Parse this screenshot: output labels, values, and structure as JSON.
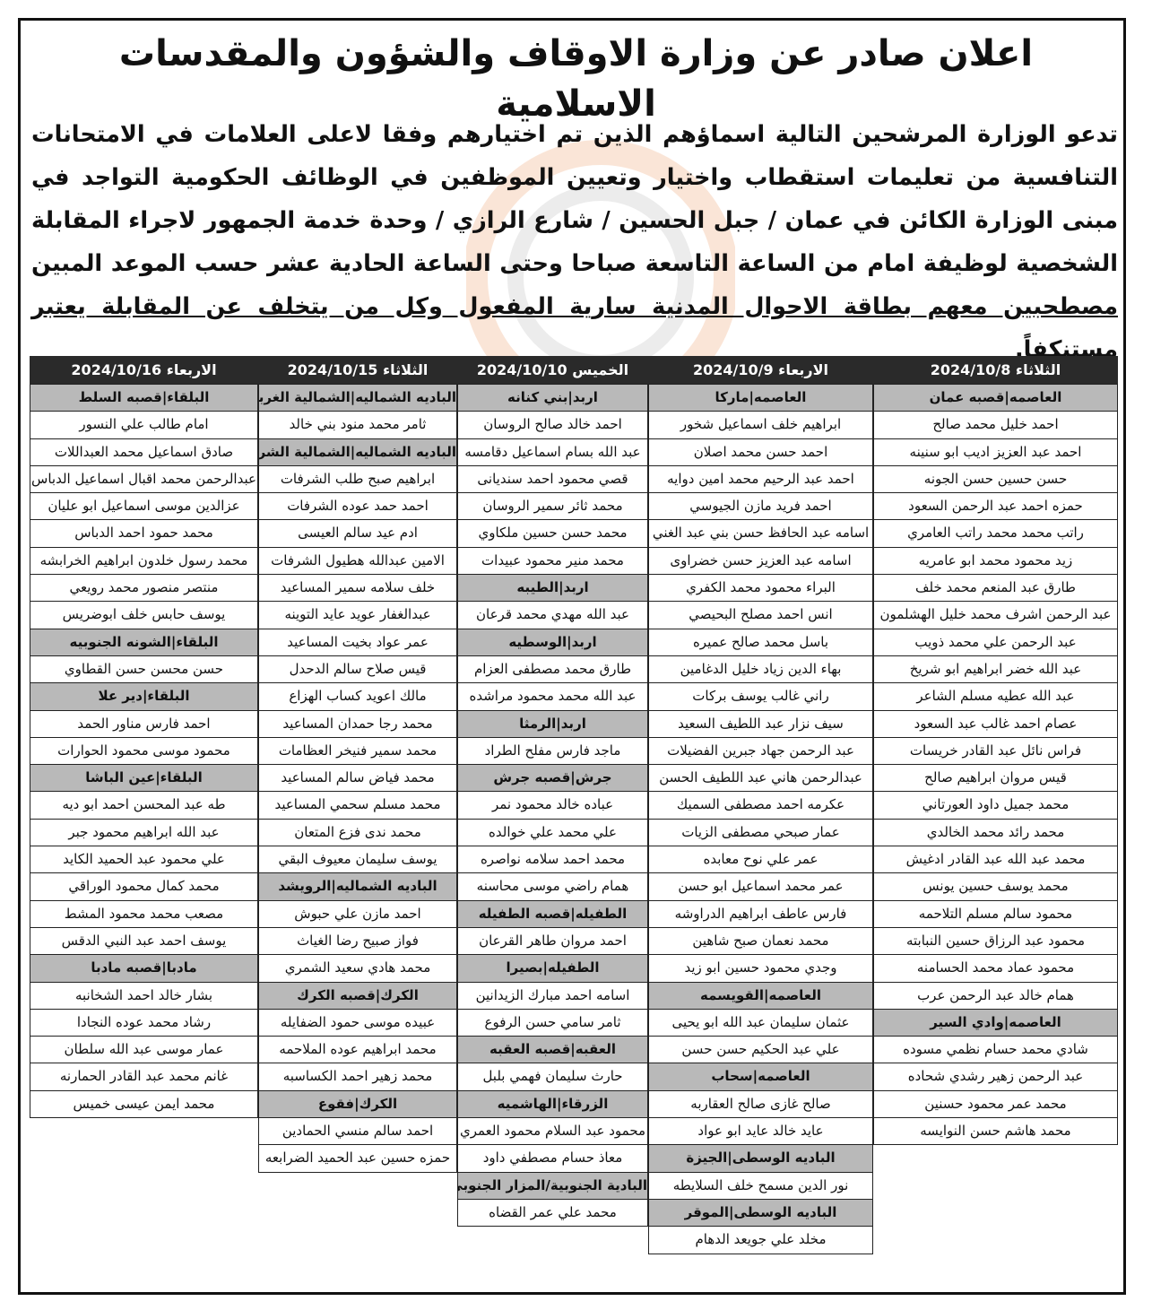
{
  "title": "اعلان صادر عن وزارة الاوقاف والشؤون والمقدسات الاسلامية",
  "paragraph": {
    "main": "تدعو الوزارة المرشحين التالية اسماؤهم الذين تم اختيارهم وفقا لاعلى العلامات في الامتحانات التنافسية من تعليمات استقطاب واختيار وتعيين الموظفين في الوظائف الحكومية التواجد في مبنى الوزارة الكائن في عمان / جبل الحسين / شارع الرازي / وحدة خدمة الجمهور لاجراء المقابلة الشخصية لوظيفة امام من الساعة التاسعة صباحا وحتى الساعة الحادية عشر حسب الموعد المبين",
    "underlined": "مصطحبين معهم بطاقة الاحوال المدنية سارية المفعول وكل من يتخلف عن المقابلة يعتبر مستنكفاً."
  },
  "colors": {
    "header_bg": "#2a2a2a",
    "group_row_bg": "#b9b9b9",
    "watermark": "#e8732a"
  },
  "columns": [
    {
      "header": "الثلاثاء 2024/10/8",
      "rows": [
        {
          "t": "العاصمه|قصبه عمان",
          "g": true
        },
        {
          "t": "احمد خليل محمد صالح"
        },
        {
          "t": "احمد عبد العزيز اديب ابو سنينه"
        },
        {
          "t": "حسن حسين حسن الجونه"
        },
        {
          "t": "حمزه احمد عبد الرحمن السعود"
        },
        {
          "t": "راتب محمد محمد راتب العامري"
        },
        {
          "t": "زيد محمود محمد ابو عامريه"
        },
        {
          "t": "طارق عبد المنعم محمد خلف"
        },
        {
          "t": "عبد الرحمن اشرف محمد خليل الهشلمون"
        },
        {
          "t": "عبد الرحمن علي محمد ذويب"
        },
        {
          "t": "عبد الله خضر ابراهيم ابو شريخ"
        },
        {
          "t": "عبد الله عطيه مسلم الشاعر"
        },
        {
          "t": "عصام احمد غالب عبد السعود"
        },
        {
          "t": "فراس نائل عبد القادر خريسات"
        },
        {
          "t": "قيس مروان ابراهيم صالح"
        },
        {
          "t": "محمد جميل داود العورتاني"
        },
        {
          "t": "محمد رائد محمد الخالدي"
        },
        {
          "t": "محمد عبد الله عبد القادر ادغيش"
        },
        {
          "t": "محمد يوسف حسين يونس"
        },
        {
          "t": "محمود سالم مسلم التلاحمه"
        },
        {
          "t": "محمود عبد الرزاق حسين النبابته"
        },
        {
          "t": "محمود عماد محمد الحسامنه"
        },
        {
          "t": "همام خالد عبد الرحمن عرب"
        },
        {
          "t": "العاصمه|وادي السير",
          "g": true
        },
        {
          "t": "شادي محمد حسام نظمي مسوده"
        },
        {
          "t": "عبد الرحمن زهير رشدي شحاده"
        },
        {
          "t": "محمد عمر محمود حسنين"
        },
        {
          "t": "محمد هاشم حسن النوايسه"
        }
      ]
    },
    {
      "header": "الاربعاء 2024/10/9",
      "rows": [
        {
          "t": "العاصمه|ماركا",
          "g": true
        },
        {
          "t": "ابراهيم خلف اسماعيل شخور"
        },
        {
          "t": "احمد حسن محمد اصلان"
        },
        {
          "t": "احمد عبد الرحيم محمد امين دوايه"
        },
        {
          "t": "احمد فريد مازن الجيوسي"
        },
        {
          "t": "اسامه عبد الحافظ حسن بني عبد الغني"
        },
        {
          "t": "اسامه عبد العزيز حسن خضراوى"
        },
        {
          "t": "البراء محمود محمد الكفري"
        },
        {
          "t": "انس احمد مصلح البحيصي"
        },
        {
          "t": "باسل محمد صالح عميره"
        },
        {
          "t": "بهاء الدين زياد خليل الدغامين"
        },
        {
          "t": "راني غالب يوسف بركات"
        },
        {
          "t": "سيف نزار عبد اللطيف السعيد"
        },
        {
          "t": "عبد الرحمن جهاد جبرين الفضيلات"
        },
        {
          "t": "عبدالرحمن هاني عبد اللطيف الحسن"
        },
        {
          "t": "عكرمه احمد مصطفى السميك"
        },
        {
          "t": "عمار صبحي مصطفى الزيات"
        },
        {
          "t": "عمر علي نوح معابده"
        },
        {
          "t": "عمر محمد اسماعيل ابو حسن"
        },
        {
          "t": "فارس عاطف ابراهيم الدراوشه"
        },
        {
          "t": "محمد نعمان صبح شاهين"
        },
        {
          "t": "وجدي محمود حسين ابو زيد"
        },
        {
          "t": "العاصمه|القويسمه",
          "g": true
        },
        {
          "t": "عثمان سليمان عبد الله ابو يحيى"
        },
        {
          "t": "علي عبد الحكيم حسن حسن"
        },
        {
          "t": "العاصمه|سحاب",
          "g": true
        },
        {
          "t": "صالح غازى صالح العقاربه"
        },
        {
          "t": "عايد خالد عايد ابو عواد"
        },
        {
          "t": "الباديه الوسطى|الجيزة",
          "g": true
        },
        {
          "t": "نور الدين مسمح خلف السلايطه"
        },
        {
          "t": "الباديه الوسطى|الموقر",
          "g": true
        },
        {
          "t": "مخلد علي جويعد الدهام"
        }
      ]
    },
    {
      "header": "الخميس 2024/10/10",
      "rows": [
        {
          "t": "اربد|بني كنانه",
          "g": true
        },
        {
          "t": "احمد خالد صالح الروسان"
        },
        {
          "t": "عبد الله بسام اسماعيل دقامسه"
        },
        {
          "t": "قصي محمود احمد سنديانى"
        },
        {
          "t": "محمد ثائر سمير الروسان"
        },
        {
          "t": "محمد حسن حسين ملكاوي"
        },
        {
          "t": "محمد منير محمود عبيدات"
        },
        {
          "t": "اربد|الطيبه",
          "g": true
        },
        {
          "t": "عبد الله مهدي محمد قرعان"
        },
        {
          "t": "اربد|الوسطيه",
          "g": true
        },
        {
          "t": "طارق محمد مصطفى العزام"
        },
        {
          "t": "عبد الله محمد محمود مراشده"
        },
        {
          "t": "اربد|الرمثا",
          "g": true
        },
        {
          "t": "ماجد فارس مفلح الطراد"
        },
        {
          "t": "جرش|قصبه جرش",
          "g": true
        },
        {
          "t": "عباده خالد محمود نمر"
        },
        {
          "t": "علي محمد علي خوالده"
        },
        {
          "t": "محمد احمد سلامه نواصره"
        },
        {
          "t": "همام راضي موسى محاسنه"
        },
        {
          "t": "الطفيله|قصبه الطفيله",
          "g": true
        },
        {
          "t": "احمد مروان طاهر القرعان"
        },
        {
          "t": "الطفيله|بصيرا",
          "g": true
        },
        {
          "t": "اسامه احمد مبارك الزيدانين"
        },
        {
          "t": "ثامر سامي حسن الرفوع"
        },
        {
          "t": "العقبه|قصبه العقبه",
          "g": true
        },
        {
          "t": "حارث سليمان فهمي بلبل"
        },
        {
          "t": "الزرقاء|الهاشميه",
          "g": true
        },
        {
          "t": "محمود عبد السلام محمود العمري"
        },
        {
          "t": "معاذ حسام مصطفي داود"
        },
        {
          "t": "البادية الجنوبية/المزار الجنوبي",
          "g": true
        },
        {
          "t": "محمد علي عمر القضاه"
        }
      ]
    },
    {
      "header": "الثلاثاء 2024/10/15",
      "rows": [
        {
          "t": "الباديه الشماليه|الشمالية الغربية",
          "g": true
        },
        {
          "t": "ثامر محمد منود بني خالد"
        },
        {
          "t": "الباديه الشماليه|الشمالية الشرقية",
          "g": true
        },
        {
          "t": "ابراهيم صبح طلب الشرفات"
        },
        {
          "t": "احمد حمد عوده الشرفات"
        },
        {
          "t": "ادم عيد سالم العيسى"
        },
        {
          "t": "الامين عبدالله هطيول الشرفات"
        },
        {
          "t": "خلف سلامه سمير المساعيد"
        },
        {
          "t": "عبدالغفار عويد عايد التوينه"
        },
        {
          "t": "عمر عواد بخيت المساعيد"
        },
        {
          "t": "قيس صلاح سالم الدحدل"
        },
        {
          "t": "مالك اعويد كساب الهزاع"
        },
        {
          "t": "محمد رجا حمدان المساعيد"
        },
        {
          "t": "محمد سمير فنيخر العظامات"
        },
        {
          "t": "محمد فياض سالم المساعيد"
        },
        {
          "t": "محمد مسلم سحمي المساعيد"
        },
        {
          "t": "محمد ندى فزع المتعان"
        },
        {
          "t": "يوسف سليمان معيوف البقي"
        },
        {
          "t": "الباديه الشماليه|الرويشد",
          "g": true
        },
        {
          "t": "احمد مازن علي حبوش"
        },
        {
          "t": "فواز صبيح رضا الغياث"
        },
        {
          "t": "محمد هادي سعيد الشمري"
        },
        {
          "t": "الكرك|قصبه الكرك",
          "g": true
        },
        {
          "t": "عبيده موسى حمود الضفايله"
        },
        {
          "t": "محمد ابراهيم عوده الملاحمه"
        },
        {
          "t": "محمد زهير احمد الكساسبه"
        },
        {
          "t": "الكرك|فقوع",
          "g": true
        },
        {
          "t": "احمد سالم منسي الحمادين"
        },
        {
          "t": "حمزه حسين عبد الحميد الضرابعه"
        }
      ]
    },
    {
      "header": "الاربعاء 2024/10/16",
      "rows": [
        {
          "t": "البلقاء|قصبه السلط",
          "g": true
        },
        {
          "t": "امام طالب علي النسور"
        },
        {
          "t": "صادق اسماعيل محمد العبداللات"
        },
        {
          "t": "عبدالرحمن محمد اقبال اسماعيل الدباس"
        },
        {
          "t": "عزالدين موسى اسماعيل ابو عليان"
        },
        {
          "t": "محمد حمود احمد الدباس"
        },
        {
          "t": "محمد رسول خلدون ابراهيم الخرابشه"
        },
        {
          "t": "منتصر منصور محمد رويعي"
        },
        {
          "t": "يوسف حابس خلف ابوضريس"
        },
        {
          "t": "البلقاء|الشونه الجنوبيه",
          "g": true
        },
        {
          "t": "حسن محسن حسن القطاوي"
        },
        {
          "t": "البلقاء|دير علا",
          "g": true
        },
        {
          "t": "احمد فارس مناور الحمد"
        },
        {
          "t": "محمود موسى محمود الحوارات"
        },
        {
          "t": "البلقاء|عين الباشا",
          "g": true
        },
        {
          "t": "طه عبد المحسن احمد ابو ديه"
        },
        {
          "t": "عبد الله ابراهيم محمود جبر"
        },
        {
          "t": "علي محمود عبد الحميد الكايد"
        },
        {
          "t": "محمد كمال محمود الوراقي"
        },
        {
          "t": "مصعب محمد محمود المشط"
        },
        {
          "t": "يوسف احمد عبد النبي الدقس"
        },
        {
          "t": "مادبا|قصبه مادبا",
          "g": true
        },
        {
          "t": "بشار خالد احمد الشخانبه"
        },
        {
          "t": "رشاد محمد عوده النجادا"
        },
        {
          "t": "عمار موسى عبد الله سلطان"
        },
        {
          "t": "غانم محمد عبد القادر الحمارنه"
        },
        {
          "t": "محمد ايمن عيسى خميس"
        }
      ]
    }
  ]
}
